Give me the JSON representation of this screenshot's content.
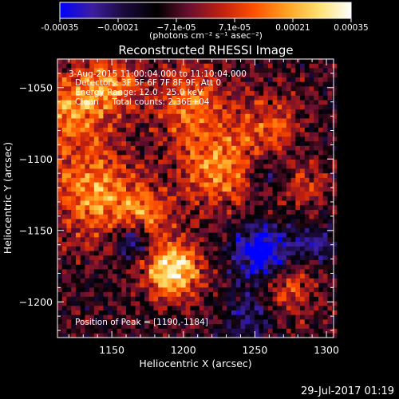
{
  "colorbar": {
    "min": -0.00035,
    "max": 0.00035,
    "tick_labels": [
      "-0.00035",
      "−0.00021",
      "−7.1e-05",
      "7.1e-05",
      "0.00021",
      "0.00035"
    ],
    "unit_label": "(photons cm⁻² s⁻¹ asec⁻²)",
    "colors": [
      "#0000ff",
      "#3c1ea0",
      "#1a0a3a",
      "#000000",
      "#6a1030",
      "#c02010",
      "#ff5000",
      "#ffa020",
      "#ffe070",
      "#ffffff"
    ]
  },
  "chart_data": {
    "type": "heatmap",
    "title": "Reconstructed RHESSI Image",
    "xlabel": "Heliocentric X (arcsec)",
    "ylabel": "Heliocentric Y (arcsec)",
    "xlim": [
      1112,
      1305
    ],
    "ylim": [
      -1225,
      -1030
    ],
    "xticks": [
      1150,
      1200,
      1250,
      1300
    ],
    "yticks": [
      -1050,
      -1100,
      -1150,
      -1200
    ],
    "annotations": {
      "time_range": "3-Aug-2015 11:00:04.000 to 11:10:04.000",
      "detectors": "Detectors: 3F 5F 6F 7F 8F 9F, Att 0",
      "energy": "Energy Range: 12.0 - 25.0 keV",
      "method": "Clean     Total counts: 2.36E+04",
      "peak": "Position of Peak = [1190,-1184]"
    },
    "peak": [
      1190,
      -1184
    ],
    "hotspots": [
      {
        "x": 1192,
        "y": -1178,
        "sigma": 14,
        "amp": 3.4
      },
      {
        "x": 1175,
        "y": -1140,
        "sigma": 12,
        "amp": 1.6
      },
      {
        "x": 1140,
        "y": -1125,
        "sigma": 22,
        "amp": 2.4
      },
      {
        "x": 1120,
        "y": -1065,
        "sigma": 20,
        "amp": 2.1
      },
      {
        "x": 1150,
        "y": -1048,
        "sigma": 14,
        "amp": 1.8
      },
      {
        "x": 1225,
        "y": -1105,
        "sigma": 20,
        "amp": 2.2
      },
      {
        "x": 1205,
        "y": -1060,
        "sigma": 18,
        "amp": 1.9
      },
      {
        "x": 1262,
        "y": -1075,
        "sigma": 15,
        "amp": 1.4
      },
      {
        "x": 1275,
        "y": -1190,
        "sigma": 14,
        "amp": 1.5
      },
      {
        "x": 1285,
        "y": -1120,
        "sigma": 12,
        "amp": 1.2
      }
    ],
    "coldspots": [
      {
        "x": 1255,
        "y": -1165,
        "sigma": 14,
        "amp": -2.8
      },
      {
        "x": 1165,
        "y": -1158,
        "sigma": 10,
        "amp": -2.0
      },
      {
        "x": 1245,
        "y": -1210,
        "sigma": 12,
        "amp": -1.3
      },
      {
        "x": 1255,
        "y": -1110,
        "sigma": 9,
        "amp": -1.2
      },
      {
        "x": 1292,
        "y": -1160,
        "sigma": 10,
        "amp": -1.4
      }
    ]
  },
  "footer": {
    "date": "29-Jul-2017 01:19"
  }
}
